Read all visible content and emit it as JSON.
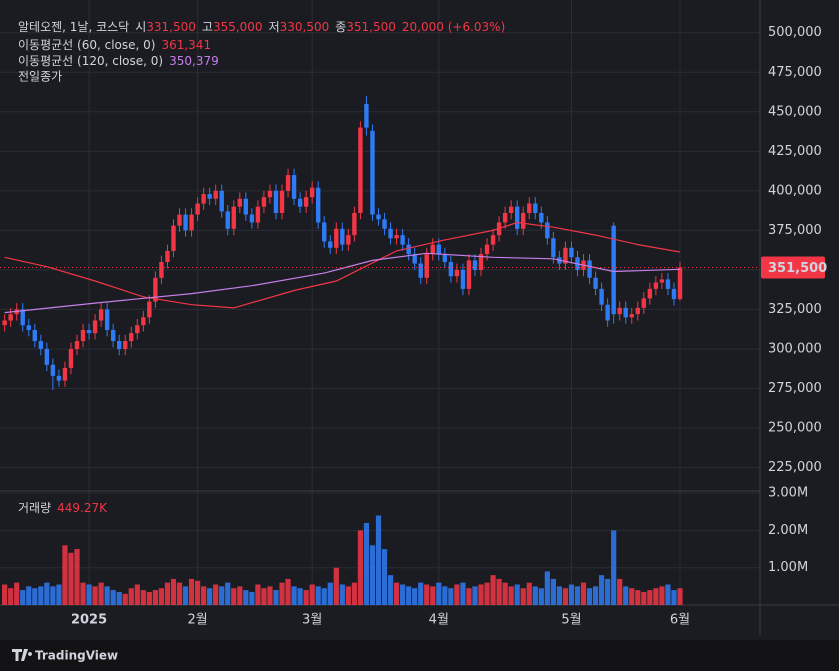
{
  "chart_data": {
    "type": "candlestick",
    "header": {
      "symbol": "알테오젠, 1날, 코스닥",
      "open_label": "시",
      "open": "331,500",
      "high_label": "고",
      "high": "355,000",
      "low_label": "저",
      "low": "330,500",
      "close_label": "종",
      "close": "351,500",
      "change": "20,000 (+6.03%)"
    },
    "prev_close_label": "전일종가",
    "up_color": "#f23645",
    "down_color": "#2f7bf5",
    "grid": true,
    "categories": [
      null,
      null,
      null,
      null,
      null,
      null,
      null,
      null,
      null,
      null,
      null,
      null,
      null,
      null,
      "2025",
      null,
      null,
      null,
      null,
      null,
      null,
      null,
      null,
      null,
      null,
      null,
      null,
      null,
      null,
      null,
      null,
      null,
      "2월",
      null,
      null,
      null,
      null,
      null,
      null,
      null,
      null,
      null,
      null,
      null,
      null,
      null,
      null,
      null,
      null,
      null,
      null,
      "3월",
      null,
      null,
      null,
      null,
      null,
      null,
      null,
      null,
      null,
      null,
      null,
      null,
      null,
      null,
      null,
      null,
      null,
      null,
      null,
      null,
      "4월",
      null,
      null,
      null,
      null,
      null,
      null,
      null,
      null,
      null,
      null,
      null,
      null,
      null,
      null,
      null,
      null,
      null,
      null,
      null,
      null,
      null,
      "5월",
      null,
      null,
      null,
      null,
      null,
      null,
      null,
      null,
      null,
      null,
      null,
      null,
      null,
      null,
      null,
      null,
      null,
      "6월"
    ],
    "open": [
      315000,
      318000,
      322000,
      325000,
      315000,
      312000,
      305000,
      300000,
      290000,
      283000,
      280000,
      288000,
      300000,
      305000,
      312000,
      310000,
      318000,
      325000,
      312000,
      305000,
      300000,
      305000,
      310000,
      315000,
      320000,
      330000,
      345000,
      355000,
      362000,
      378000,
      385000,
      375000,
      385000,
      392000,
      398000,
      395000,
      400000,
      387000,
      376000,
      390000,
      395000,
      385000,
      380000,
      390000,
      396000,
      400000,
      386000,
      400000,
      410000,
      395000,
      390000,
      396000,
      402000,
      380000,
      368000,
      364000,
      376000,
      366000,
      372000,
      386000,
      455000,
      438000,
      385000,
      382000,
      376000,
      370000,
      372000,
      366000,
      360000,
      354000,
      345000,
      360000,
      366000,
      360000,
      355000,
      346000,
      350000,
      338000,
      356000,
      350000,
      360000,
      366000,
      372000,
      380000,
      386000,
      390000,
      376000,
      386000,
      392000,
      386000,
      380000,
      370000,
      358000,
      354000,
      364000,
      358000,
      350000,
      356000,
      345000,
      338000,
      328000,
      378000,
      322000,
      326000,
      320000,
      322000,
      326000,
      332000,
      338000,
      342000,
      344000,
      338000,
      331500
    ],
    "high": [
      322000,
      326000,
      329000,
      329000,
      319000,
      316000,
      309000,
      304000,
      294000,
      287000,
      292000,
      304000,
      309000,
      316000,
      316000,
      322000,
      329000,
      329000,
      316000,
      309000,
      309000,
      314000,
      319000,
      324000,
      334000,
      349000,
      359000,
      366000,
      382000,
      389000,
      389000,
      389000,
      396000,
      402000,
      402000,
      404000,
      404000,
      391000,
      394000,
      399000,
      399000,
      389000,
      394000,
      400000,
      404000,
      404000,
      404000,
      414000,
      414000,
      399000,
      400000,
      406000,
      406000,
      384000,
      372000,
      380000,
      380000,
      376000,
      390000,
      444000,
      460000,
      442000,
      389000,
      386000,
      380000,
      376000,
      376000,
      370000,
      364000,
      358000,
      364000,
      370000,
      370000,
      364000,
      359000,
      354000,
      354000,
      360000,
      360000,
      364000,
      370000,
      376000,
      384000,
      390000,
      394000,
      394000,
      390000,
      396000,
      396000,
      390000,
      384000,
      374000,
      362000,
      368000,
      368000,
      362000,
      360000,
      360000,
      349000,
      342000,
      332000,
      380000,
      330000,
      330000,
      326000,
      330000,
      336000,
      342000,
      346000,
      348000,
      348000,
      342000,
      355000
    ],
    "low": [
      311000,
      314000,
      318000,
      311000,
      308000,
      301000,
      296000,
      286000,
      274000,
      276000,
      276000,
      284000,
      296000,
      301000,
      306000,
      306000,
      314000,
      308000,
      301000,
      296000,
      296000,
      301000,
      306000,
      311000,
      316000,
      326000,
      341000,
      351000,
      358000,
      374000,
      371000,
      371000,
      381000,
      388000,
      391000,
      391000,
      383000,
      372000,
      372000,
      386000,
      381000,
      376000,
      376000,
      386000,
      392000,
      382000,
      382000,
      396000,
      391000,
      386000,
      386000,
      392000,
      376000,
      364000,
      360000,
      360000,
      362000,
      362000,
      368000,
      382000,
      435000,
      381000,
      378000,
      372000,
      366000,
      366000,
      362000,
      356000,
      350000,
      341000,
      341000,
      356000,
      356000,
      351000,
      342000,
      342000,
      334000,
      334000,
      346000,
      346000,
      356000,
      362000,
      368000,
      376000,
      382000,
      372000,
      372000,
      382000,
      382000,
      376000,
      366000,
      354000,
      350000,
      350000,
      354000,
      346000,
      346000,
      341000,
      334000,
      324000,
      314000,
      316000,
      318000,
      316000,
      316000,
      318000,
      322000,
      328000,
      334000,
      338000,
      334000,
      327500,
      330500
    ],
    "close": [
      318000,
      322000,
      325000,
      315000,
      312000,
      305000,
      300000,
      290000,
      283000,
      280000,
      288000,
      300000,
      305000,
      312000,
      310000,
      318000,
      325000,
      312000,
      305000,
      300000,
      305000,
      310000,
      315000,
      320000,
      330000,
      345000,
      355000,
      362000,
      378000,
      385000,
      375000,
      385000,
      392000,
      398000,
      395000,
      400000,
      387000,
      376000,
      390000,
      395000,
      385000,
      380000,
      390000,
      396000,
      400000,
      386000,
      400000,
      410000,
      395000,
      390000,
      396000,
      402000,
      380000,
      368000,
      364000,
      376000,
      366000,
      372000,
      386000,
      440000,
      440000,
      385000,
      382000,
      376000,
      370000,
      372000,
      366000,
      360000,
      354000,
      345000,
      360000,
      366000,
      360000,
      355000,
      346000,
      350000,
      338000,
      356000,
      350000,
      360000,
      366000,
      372000,
      380000,
      386000,
      390000,
      376000,
      386000,
      392000,
      386000,
      380000,
      370000,
      358000,
      354000,
      364000,
      358000,
      350000,
      356000,
      345000,
      338000,
      328000,
      318000,
      322000,
      326000,
      320000,
      322000,
      326000,
      332000,
      338000,
      342000,
      344000,
      338000,
      331500,
      351500
    ],
    "ylim": [
      210800,
      520700
    ],
    "yticks": [
      {
        "value": 225000,
        "label": "225,000"
      },
      {
        "value": 250000,
        "label": "250,000"
      },
      {
        "value": 275000,
        "label": "275,000"
      },
      {
        "value": 300000,
        "label": "300,000"
      },
      {
        "value": 325000,
        "label": "325,000"
      },
      {
        "value": 350000,
        "label": "350,000"
      },
      {
        "value": 375000,
        "label": "375,000"
      },
      {
        "value": 400000,
        "label": "400,000"
      },
      {
        "value": 425000,
        "label": "425,000"
      },
      {
        "value": 450000,
        "label": "450,000"
      },
      {
        "value": 475000,
        "label": "475,000"
      },
      {
        "value": 500000,
        "label": "500,000"
      }
    ],
    "last_price": {
      "value": 351500,
      "label": "351,500"
    },
    "lines": [
      {
        "name": "이동평균선 (60, close, 0)",
        "color": "#f23645",
        "last_label": "361,341",
        "x": [
          0,
          7,
          15,
          23,
          31,
          38,
          48,
          55,
          65,
          73,
          81,
          85,
          91,
          98,
          105,
          112
        ],
        "values": [
          358000,
          352000,
          343000,
          333000,
          328000,
          326000,
          337000,
          343000,
          362000,
          369000,
          375000,
          380000,
          377000,
          372000,
          366000,
          361341
        ]
      },
      {
        "name": "이동평균선 (120, close, 0)",
        "color": "#c77ee8",
        "last_label": "350,379",
        "x": [
          0,
          15,
          31,
          41,
          53,
          61,
          70,
          81,
          91,
          101,
          112
        ],
        "values": [
          323000,
          329000,
          335000,
          340000,
          348000,
          356000,
          360500,
          358000,
          357000,
          349000,
          350379
        ]
      }
    ],
    "volume_title": "거래량",
    "volume_last": "449.27K",
    "volume": [
      550000,
      450000,
      600000,
      400000,
      500000,
      450000,
      500000,
      600000,
      500000,
      550000,
      1600000,
      1400000,
      1500000,
      600000,
      550000,
      500000,
      600000,
      500000,
      400000,
      350000,
      300000,
      450000,
      550000,
      400000,
      350000,
      400000,
      450000,
      600000,
      700000,
      600000,
      500000,
      700000,
      650000,
      500000,
      450000,
      550000,
      500000,
      600000,
      450000,
      500000,
      400000,
      350000,
      550000,
      450000,
      500000,
      400000,
      600000,
      700000,
      500000,
      450000,
      400000,
      550000,
      500000,
      450000,
      600000,
      1000000,
      550000,
      500000,
      600000,
      2000000,
      2200000,
      1600000,
      2400000,
      1500000,
      800000,
      600000,
      550000,
      500000,
      450000,
      600000,
      550000,
      500000,
      600000,
      500000,
      450000,
      550000,
      600000,
      450000,
      500000,
      550000,
      600000,
      800000,
      700000,
      600000,
      500000,
      550000,
      450000,
      600000,
      500000,
      450000,
      900000,
      700000,
      500000,
      450000,
      550000,
      500000,
      600000,
      450000,
      500000,
      800000,
      700000,
      2000000,
      700000,
      500000,
      450000,
      400000,
      350000,
      400000,
      450000,
      500000,
      550000,
      400000,
      449270
    ],
    "vlim": [
      0,
      3030000
    ],
    "vticks": [
      {
        "value": 1000000,
        "label": "1.00M"
      },
      {
        "value": 2000000,
        "label": "2.00M"
      },
      {
        "value": 3000000,
        "label": "3.00M"
      }
    ],
    "brand": "TradingView"
  }
}
